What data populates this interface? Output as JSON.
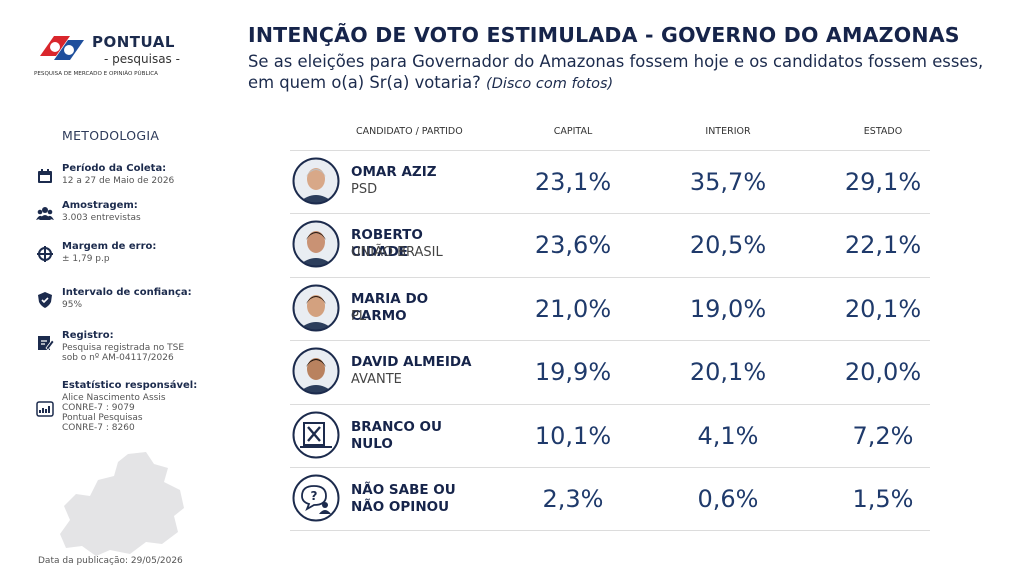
{
  "logo": {
    "name": "PONTUAL",
    "sub": "- pesquisas -",
    "tagline": "PESQUISA DE MERCADO E OPINIÃO PÚBLICA"
  },
  "header": {
    "title": "INTENÇÃO DE VOTO ESTIMULADA - GOVERNO DO AMAZONAS",
    "subtitle": "Se as eleições para Governador do Amazonas fossem hoje e os candidatos fossem esses, em quem o(a) Sr(a) votaria?",
    "note": "(Disco com fotos)"
  },
  "methodology": {
    "title": "METODOLOGIA",
    "items": [
      {
        "label": "Período da Coleta:",
        "lines": [
          "12 a 27 de Maio de 2026"
        ]
      },
      {
        "label": "Amostragem:",
        "lines": [
          "3.003 entrevistas"
        ]
      },
      {
        "label": "Margem de erro:",
        "lines": [
          "± 1,79 p.p"
        ]
      },
      {
        "label": "Intervalo de confiança:",
        "lines": [
          "95%"
        ]
      },
      {
        "label": "Registro:",
        "lines": [
          "Pesquisa registrada no TSE",
          "sob o nº AM-04117/2026"
        ]
      },
      {
        "label": "Estatístico responsável:",
        "lines": [
          "Alice Nascimento Assis",
          "CONRE-7 : 9079",
          "Pontual Pesquisas",
          "CONRE-7 : 8260"
        ]
      }
    ]
  },
  "table": {
    "columns": [
      "CANDIDATO / PARTIDO",
      "CAPITAL",
      "INTERIOR",
      "ESTADO"
    ],
    "rows": [
      {
        "name": "OMAR AZIZ",
        "party": "PSD",
        "values": [
          "23,1%",
          "35,7%",
          "29,1%"
        ]
      },
      {
        "name": "ROBERTO CIDADE",
        "party": "UNIÃO BRASIL",
        "values": [
          "23,6%",
          "20,5%",
          "22,1%"
        ]
      },
      {
        "name": "MARIA DO CARMO",
        "party": "PL",
        "values": [
          "21,0%",
          "19,0%",
          "20,1%"
        ]
      },
      {
        "name": "DAVID ALMEIDA",
        "party": "AVANTE",
        "values": [
          "19,9%",
          "20,1%",
          "20,0%"
        ]
      },
      {
        "name": "BRANCO OU NULO",
        "values": [
          "10,1%",
          "4,1%",
          "7,2%"
        ]
      },
      {
        "name": "NÃO SABE OU NÃO OPINOU",
        "values": [
          "2,3%",
          "0,6%",
          "1,5%"
        ]
      }
    ]
  },
  "footer": "Data da publicação: 29/05/2026"
}
